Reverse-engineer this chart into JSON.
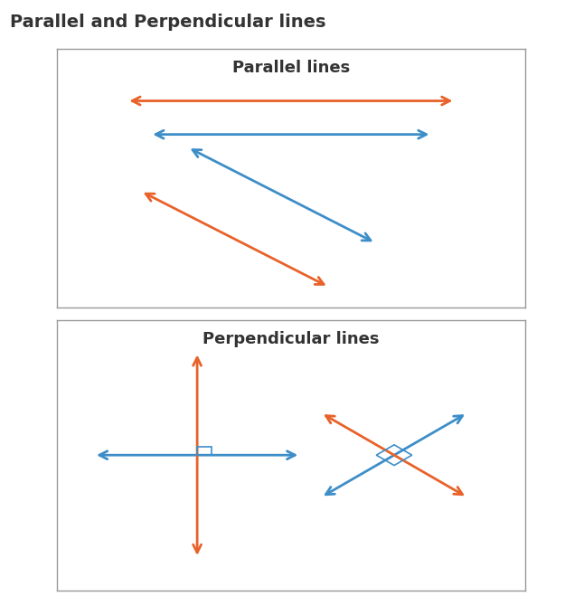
{
  "title": "Parallel and Perpendicular lines",
  "title_color": "#333333",
  "title_fontsize": 14,
  "orange_color": "#E8622A",
  "blue_color": "#3D8EC8",
  "section1_title": "Parallel lines",
  "section2_title": "Perpendicular lines",
  "section_title_fontsize": 13,
  "bg_color": "#ffffff",
  "box_edge_color": "#999999",
  "lw": 2.0,
  "arrow_mutation": 16
}
